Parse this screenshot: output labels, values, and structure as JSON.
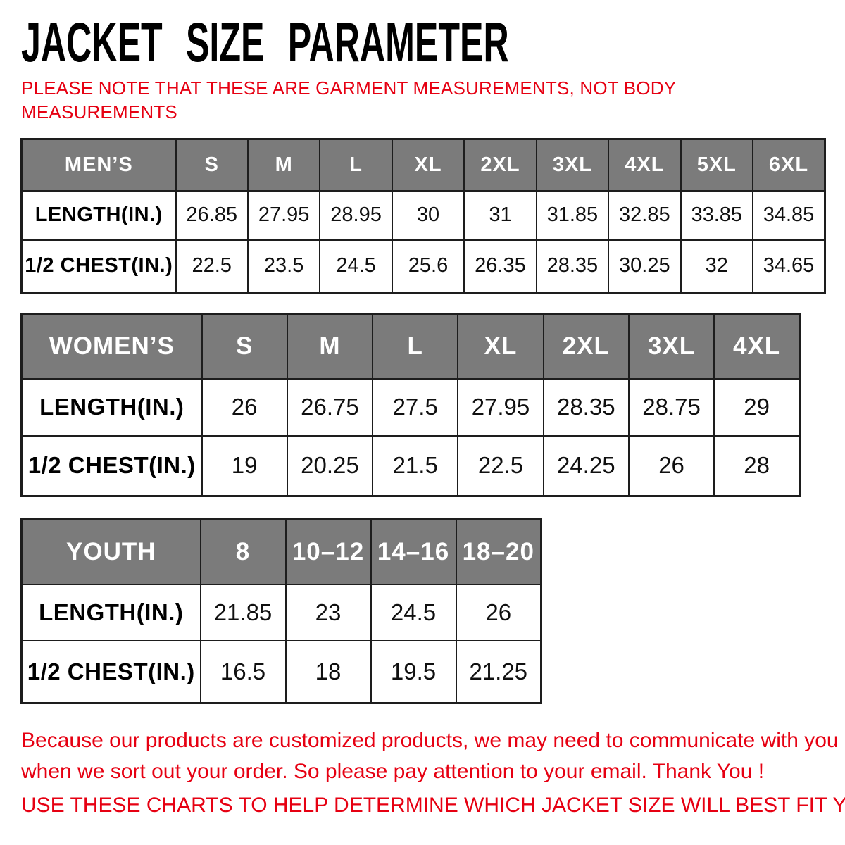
{
  "page": {
    "title": "JACKET SIZE PARAMETER",
    "note_line1": "PLEASE NOTE THAT THESE ARE GARMENT MEASUREMENTS, NOT BODY",
    "note_line2": "MEASUREMENTS"
  },
  "colors": {
    "header_bg": "#7b7b7b",
    "header_text": "#ffffff",
    "accent_red": "#e60012",
    "border": "#1d1d1d",
    "background": "#ffffff"
  },
  "tables": [
    {
      "id": "mens",
      "name": "MEN’S",
      "sizes": [
        "S",
        "M",
        "L",
        "XL",
        "2XL",
        "3XL",
        "4XL",
        "5XL",
        "6XL"
      ],
      "rows": [
        {
          "label": "LENGTH(IN.)",
          "values": [
            "26.85",
            "27.95",
            "28.95",
            "30",
            "31",
            "31.85",
            "32.85",
            "33.85",
            "34.85"
          ]
        },
        {
          "label": "1/2 CHEST(IN.)",
          "values": [
            "22.5",
            "23.5",
            "24.5",
            "25.6",
            "26.35",
            "28.35",
            "30.25",
            "32",
            "34.65"
          ]
        }
      ]
    },
    {
      "id": "womens",
      "name": "WOMEN’S",
      "sizes": [
        "S",
        "M",
        "L",
        "XL",
        "2XL",
        "3XL",
        "4XL"
      ],
      "rows": [
        {
          "label": "LENGTH(IN.)",
          "values": [
            "26",
            "26.75",
            "27.5",
            "27.95",
            "28.35",
            "28.75",
            "29"
          ]
        },
        {
          "label": "1/2 CHEST(IN.)",
          "values": [
            "19",
            "20.25",
            "21.5",
            "22.5",
            "24.25",
            "26",
            "28"
          ]
        }
      ]
    },
    {
      "id": "youth",
      "name": "YOUTH",
      "sizes": [
        "8",
        "10–12",
        "14–16",
        "18–20"
      ],
      "rows": [
        {
          "label": "LENGTH(IN.)",
          "values": [
            "21.85",
            "23",
            "24.5",
            "26"
          ]
        },
        {
          "label": "1/2 CHEST(IN.)",
          "values": [
            "16.5",
            "18",
            "19.5",
            "21.25"
          ]
        }
      ]
    }
  ],
  "footer": {
    "para_line1": "Because our products are customized products, we may need to communicate with you",
    "para_line2": "when we sort out your order. So please pay attention to your email. Thank You !",
    "charts_line": "USE THESE CHARTS TO HELP DETERMINE WHICH JACKET SIZE WILL BEST FIT YOU."
  }
}
